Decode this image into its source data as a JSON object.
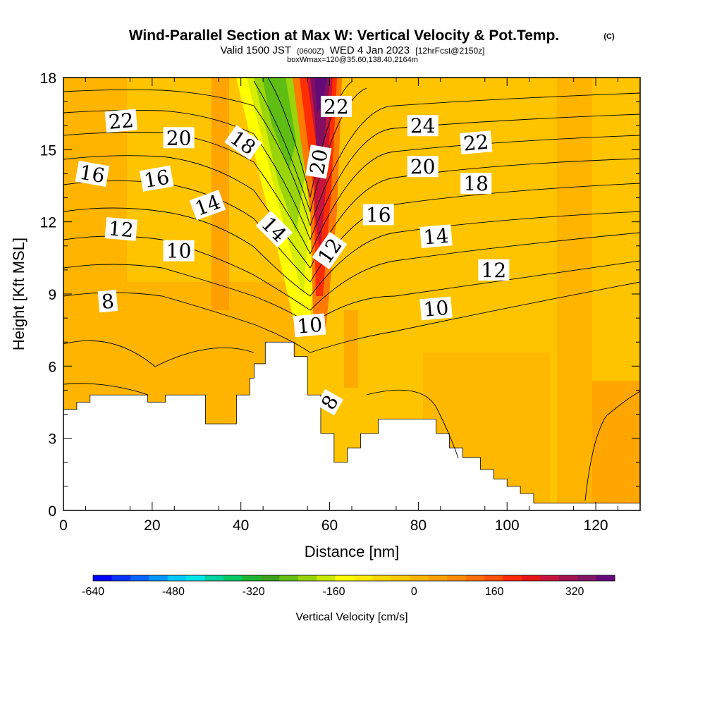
{
  "chart_data": {
    "type": "heatmap",
    "title": "Wind-Parallel Section at Max W: Vertical Velocity & Pot.Temp.",
    "title_mark": "(C)",
    "subtitle_parts": [
      "Valid 1500 JST",
      "(0600Z)",
      "WED 4 Jan 2023",
      "[12hrFcst@2150z]"
    ],
    "subtitle2": "boxWmax=120@35.60,138.40,2164m",
    "xlabel": "Distance [nm]",
    "ylabel": "Height [Kft MSL]",
    "xlim": [
      0,
      130
    ],
    "ylim": [
      0,
      18
    ],
    "x_ticks": [
      "0",
      "20",
      "40",
      "60",
      "80",
      "100",
      "120"
    ],
    "y_ticks": [
      "0",
      "3",
      "6",
      "9",
      "12",
      "15",
      "18"
    ],
    "colorbar": {
      "label": "Vertical Velocity [cm/s]",
      "ticks": [
        "-640",
        "-480",
        "-320",
        "-160",
        "0",
        "160",
        "320"
      ],
      "range": [
        -640,
        400
      ],
      "colors": [
        "#0000ff",
        "#0a32ff",
        "#0064ff",
        "#0096ff",
        "#00c8ff",
        "#00e6e6",
        "#00d2a0",
        "#00c864",
        "#1eb432",
        "#3ca01e",
        "#64be14",
        "#96d20a",
        "#c8e600",
        "#ffff00",
        "#ffeb00",
        "#ffd700",
        "#ffc800",
        "#ffb400",
        "#ffa000",
        "#ff8c00",
        "#ff6e00",
        "#ff5000",
        "#ff2800",
        "#e61414",
        "#c8143c",
        "#a01450",
        "#821464",
        "#640a78"
      ]
    },
    "terrain_kft": [
      [
        0,
        4.2
      ],
      [
        3,
        4.2
      ],
      [
        3,
        4.5
      ],
      [
        6,
        4.5
      ],
      [
        6,
        4.8
      ],
      [
        19,
        4.8
      ],
      [
        19,
        4.5
      ],
      [
        23,
        4.5
      ],
      [
        23,
        4.8
      ],
      [
        32,
        4.8
      ],
      [
        32,
        3.6
      ],
      [
        39,
        3.6
      ],
      [
        39,
        4.8
      ],
      [
        42,
        4.8
      ],
      [
        42,
        5.5
      ],
      [
        43,
        5.5
      ],
      [
        43,
        6.1
      ],
      [
        45.5,
        6.1
      ],
      [
        45.5,
        7.0
      ],
      [
        52,
        7.0
      ],
      [
        52,
        6.4
      ],
      [
        55,
        6.4
      ],
      [
        55,
        4.8
      ],
      [
        58,
        4.8
      ],
      [
        58,
        3.2
      ],
      [
        61,
        3.2
      ],
      [
        61,
        2.0
      ],
      [
        64,
        2.0
      ],
      [
        64,
        2.6
      ],
      [
        67,
        2.6
      ],
      [
        67,
        3.2
      ],
      [
        71,
        3.2
      ],
      [
        71,
        3.8
      ],
      [
        84,
        3.8
      ],
      [
        84,
        3.2
      ],
      [
        87,
        3.2
      ],
      [
        87,
        2.6
      ],
      [
        90,
        2.6
      ],
      [
        90,
        2.2
      ],
      [
        94,
        2.2
      ],
      [
        94,
        1.7
      ],
      [
        97,
        1.7
      ],
      [
        97,
        1.3
      ],
      [
        100,
        1.3
      ],
      [
        100,
        1.0
      ],
      [
        103,
        1.0
      ],
      [
        103,
        0.7
      ],
      [
        106,
        0.7
      ],
      [
        106,
        0.3
      ],
      [
        130,
        0.3
      ]
    ],
    "contour_labels": [
      {
        "text": "22",
        "x": 13,
        "y": 16.2,
        "angle": -5
      },
      {
        "text": "20",
        "x": 26,
        "y": 15.5,
        "angle": 0
      },
      {
        "text": "18",
        "x": 40.5,
        "y": 15.3,
        "angle": 35
      },
      {
        "text": "22",
        "x": 61.5,
        "y": 16.8,
        "angle": 0
      },
      {
        "text": "24",
        "x": 81,
        "y": 16.0,
        "angle": 0
      },
      {
        "text": "22",
        "x": 93,
        "y": 15.3,
        "angle": -5
      },
      {
        "text": "16",
        "x": 6.5,
        "y": 14.0,
        "angle": 10
      },
      {
        "text": "16",
        "x": 21,
        "y": 13.8,
        "angle": -10
      },
      {
        "text": "20",
        "x": 57.5,
        "y": 14.5,
        "angle": -80
      },
      {
        "text": "20",
        "x": 81,
        "y": 14.3,
        "angle": 0
      },
      {
        "text": "18",
        "x": 93,
        "y": 13.6,
        "angle": 0
      },
      {
        "text": "14",
        "x": 32.5,
        "y": 12.7,
        "angle": -20
      },
      {
        "text": "16",
        "x": 71,
        "y": 12.3,
        "angle": 0
      },
      {
        "text": "12",
        "x": 13,
        "y": 11.7,
        "angle": 5
      },
      {
        "text": "14",
        "x": 47.5,
        "y": 11.7,
        "angle": 45
      },
      {
        "text": "14",
        "x": 84,
        "y": 11.4,
        "angle": -5
      },
      {
        "text": "10",
        "x": 26,
        "y": 10.8,
        "angle": 0
      },
      {
        "text": "12",
        "x": 60,
        "y": 10.8,
        "angle": -55
      },
      {
        "text": "12",
        "x": 97,
        "y": 10.0,
        "angle": 0
      },
      {
        "text": "8",
        "x": 10,
        "y": 8.7,
        "angle": -5
      },
      {
        "text": "10",
        "x": 84,
        "y": 8.4,
        "angle": -5
      },
      {
        "text": "10",
        "x": 55.5,
        "y": 7.7,
        "angle": -5
      },
      {
        "text": "8",
        "x": 60,
        "y": 4.5,
        "angle": -60
      }
    ]
  }
}
